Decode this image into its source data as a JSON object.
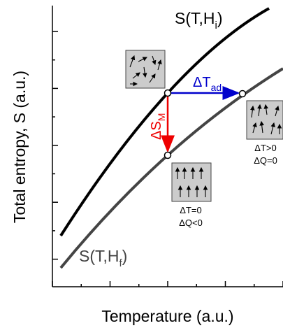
{
  "curves": {
    "initial": {
      "main": "S(T,H",
      "sub": "i",
      "close": ")"
    },
    "final": {
      "main": "S(T,H",
      "sub": "f",
      "close": ")"
    }
  },
  "arrows": {
    "adiabatic": {
      "main": "ΔT",
      "sub": "ad"
    },
    "isothermal": {
      "main": "ΔS",
      "sub": "M"
    }
  },
  "boxes": {
    "adiabatic": {
      "line1": "ΔT>0",
      "line2": "ΔQ=0"
    },
    "isothermal": {
      "line1": "ΔT=0",
      "line2": "ΔQ<0"
    }
  },
  "axes": {
    "y_label": "Total entropy, S (a.u.)",
    "x_label": "Temperature (a.u.)"
  }
}
